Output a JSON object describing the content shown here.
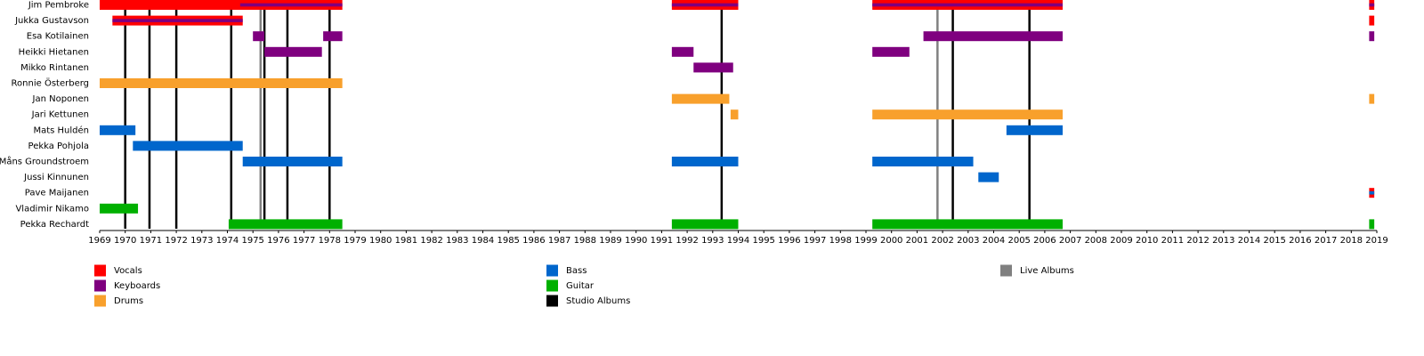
{
  "chart_data": {
    "type": "timeline",
    "members": [
      "Jim Pembroke",
      "Jukka Gustavson",
      "Esa Kotilainen",
      "Heikki Hietanen",
      "Mikko Rintanen",
      "Ronnie Österberg",
      "Jan Noponen",
      "Jari Kettunen",
      "Mats Huldén",
      "Pekka Pohjola",
      "Måns Groundstroem",
      "Jussi Kinnunen",
      "Pave Maijanen",
      "Vladimir Nikamo",
      "Pekka Rechardt"
    ],
    "series": [
      {
        "name": "Vocals",
        "color": "#ff0000",
        "bars": [
          {
            "row": 0,
            "start": 1969.0,
            "end": 1978.5
          },
          {
            "row": 0,
            "start": 1991.4,
            "end": 1994.0
          },
          {
            "row": 0,
            "start": 1999.25,
            "end": 2006.7
          },
          {
            "row": 0,
            "start": 2018.7,
            "end": 2018.9
          },
          {
            "row": 1,
            "start": 1969.5,
            "end": 1974.6
          },
          {
            "row": 1,
            "start": 2018.7,
            "end": 2018.9
          },
          {
            "row": 12,
            "start": 2018.7,
            "end": 2018.9
          }
        ]
      },
      {
        "name": "Keyboards",
        "color": "#7f007f",
        "bars": [
          {
            "row": 0,
            "start": 1974.5,
            "end": 1978.5
          },
          {
            "row": 0,
            "start": 1991.4,
            "end": 1994.0
          },
          {
            "row": 0,
            "start": 1999.25,
            "end": 2006.7
          },
          {
            "row": 0,
            "start": 2018.7,
            "end": 2018.9
          },
          {
            "row": 1,
            "start": 1969.5,
            "end": 1974.6
          },
          {
            "row": 2,
            "start": 1975.0,
            "end": 1975.45
          },
          {
            "row": 2,
            "start": 1977.75,
            "end": 1978.5
          },
          {
            "row": 2,
            "start": 2001.25,
            "end": 2006.7
          },
          {
            "row": 2,
            "start": 2018.7,
            "end": 2018.9
          },
          {
            "row": 3,
            "start": 1975.45,
            "end": 1977.7
          },
          {
            "row": 3,
            "start": 1991.4,
            "end": 1992.25
          },
          {
            "row": 3,
            "start": 1999.25,
            "end": 2000.7
          },
          {
            "row": 4,
            "start": 1992.25,
            "end": 1993.8
          }
        ]
      },
      {
        "name": "Drums",
        "color": "#f8a02c",
        "bars": [
          {
            "row": 5,
            "start": 1969.0,
            "end": 1978.5
          },
          {
            "row": 6,
            "start": 1991.4,
            "end": 1993.65
          },
          {
            "row": 6,
            "start": 2018.7,
            "end": 2018.9
          },
          {
            "row": 7,
            "start": 1993.7,
            "end": 1994.0
          },
          {
            "row": 7,
            "start": 1999.25,
            "end": 2006.7
          }
        ]
      },
      {
        "name": "Bass",
        "color": "#0066cc",
        "bars": [
          {
            "row": 8,
            "start": 1969.0,
            "end": 1970.4
          },
          {
            "row": 8,
            "start": 2004.5,
            "end": 2006.7
          },
          {
            "row": 9,
            "start": 1970.3,
            "end": 1974.6
          },
          {
            "row": 10,
            "start": 1974.6,
            "end": 1978.5
          },
          {
            "row": 10,
            "start": 1991.4,
            "end": 1994.0
          },
          {
            "row": 10,
            "start": 1999.25,
            "end": 2003.2
          },
          {
            "row": 11,
            "start": 2003.4,
            "end": 2004.2
          },
          {
            "row": 12,
            "start": 2018.7,
            "end": 2018.9
          }
        ]
      },
      {
        "name": "Guitar",
        "color": "#00b000",
        "bars": [
          {
            "row": 13,
            "start": 1969.0,
            "end": 1970.5
          },
          {
            "row": 14,
            "start": 1974.05,
            "end": 1978.5
          },
          {
            "row": 14,
            "start": 1991.4,
            "end": 1994.0
          },
          {
            "row": 14,
            "start": 1999.25,
            "end": 2006.7
          },
          {
            "row": 14,
            "start": 2018.7,
            "end": 2018.9
          }
        ]
      }
    ],
    "events": [
      {
        "name": "Studio Albums",
        "color": "#000000",
        "x": [
          1970.0,
          1970.95,
          1972.0,
          1974.15,
          1975.45,
          1976.35,
          1978.0,
          1993.35,
          2002.4,
          2005.4
        ]
      },
      {
        "name": "Live Albums",
        "color": "#808080",
        "x": [
          1975.3,
          2001.8
        ]
      }
    ],
    "xlim": [
      1969,
      2019
    ],
    "xticks": [
      1969,
      1970,
      1971,
      1972,
      1973,
      1974,
      1975,
      1976,
      1977,
      1978,
      1979,
      1980,
      1981,
      1982,
      1983,
      1984,
      1985,
      1986,
      1987,
      1988,
      1989,
      1990,
      1991,
      1992,
      1993,
      1994,
      1995,
      1996,
      1997,
      1998,
      1999,
      2000,
      2001,
      2002,
      2003,
      2004,
      2005,
      2006,
      2007,
      2008,
      2009,
      2010,
      2011,
      2012,
      2013,
      2014,
      2015,
      2016,
      2017,
      2018,
      2019
    ]
  }
}
